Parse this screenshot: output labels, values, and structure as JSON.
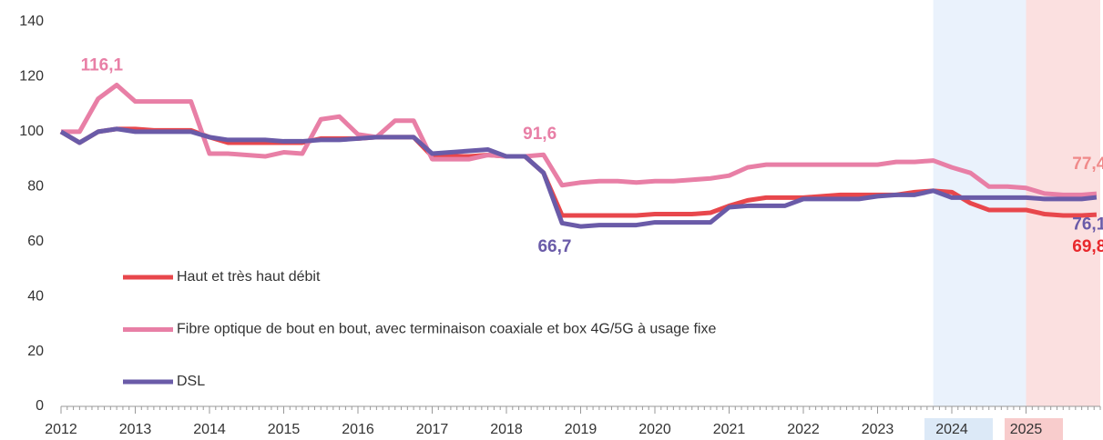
{
  "chart_data": {
    "type": "line",
    "x": [
      2012,
      2012.25,
      2012.5,
      2012.75,
      2013,
      2013.25,
      2013.5,
      2013.75,
      2014,
      2014.25,
      2014.5,
      2014.75,
      2015,
      2015.25,
      2015.5,
      2015.75,
      2016,
      2016.25,
      2016.5,
      2016.75,
      2017,
      2017.25,
      2017.5,
      2017.75,
      2018,
      2018.25,
      2018.5,
      2018.75,
      2019,
      2019.25,
      2019.5,
      2019.75,
      2020,
      2020.25,
      2020.5,
      2020.75,
      2021,
      2021.25,
      2021.5,
      2021.75,
      2022,
      2022.25,
      2022.5,
      2022.75,
      2023,
      2023.25,
      2023.5,
      2023.75,
      2024,
      2024.25,
      2024.5,
      2024.75,
      2025,
      2025.25,
      2025.5,
      2025.75,
      2025.95
    ],
    "series": [
      {
        "name": "Haut et très haut débit",
        "color": "#e8474c",
        "values": [
          100,
          96,
          100,
          101,
          101,
          100.5,
          100.5,
          100.5,
          98,
          96,
          96,
          96,
          96,
          96,
          97.5,
          97.5,
          97.5,
          98,
          98,
          98,
          91,
          91,
          91,
          91.5,
          91,
          91,
          85,
          69.5,
          69.5,
          69.5,
          69.5,
          69.5,
          70,
          70,
          70,
          70.5,
          73,
          75,
          76,
          76,
          76,
          76.5,
          77,
          77,
          77,
          77,
          78,
          78.5,
          78,
          74,
          71.5,
          71.5,
          71.5,
          70,
          69.5,
          69.5,
          69.8
        ]
      },
      {
        "name": "Fibre optique de bout en bout, avec terminaison coaxiale et box 4G/5G à usage fixe",
        "color": "#e87fa6",
        "values": [
          100,
          100,
          112,
          117,
          111,
          111,
          111,
          111,
          92,
          92,
          91.5,
          91,
          92.5,
          92,
          104.5,
          105.5,
          99,
          98,
          104,
          104,
          90,
          90,
          90,
          91.5,
          91,
          91,
          91.6,
          80.5,
          81.5,
          82,
          82,
          81.5,
          82,
          82,
          82.5,
          83,
          84,
          87,
          88,
          88,
          88,
          88,
          88,
          88,
          88,
          89,
          89,
          89.5,
          87,
          85,
          80,
          80,
          79.5,
          77.5,
          77,
          77,
          77.4
        ]
      },
      {
        "name": "DSL",
        "color": "#6a5ba8",
        "values": [
          100,
          96,
          100,
          101,
          100,
          100,
          100,
          100,
          98,
          97,
          97,
          97,
          96.5,
          96.5,
          97,
          97,
          97.5,
          98,
          98,
          98,
          92,
          92.5,
          93,
          93.5,
          91,
          91,
          85,
          66.7,
          65.5,
          66,
          66,
          66,
          67,
          67,
          67,
          67,
          72.5,
          73,
          73,
          73,
          75.5,
          75.5,
          75.5,
          75.5,
          76.5,
          77,
          77,
          78.5,
          76,
          76,
          76,
          76,
          76,
          75.5,
          75.5,
          75.5,
          76.1
        ]
      }
    ],
    "annotations": [
      {
        "label": "116,1",
        "x": 2012.55,
        "y": 124,
        "color": "#e87fa6"
      },
      {
        "label": "91,6",
        "x": 2018.45,
        "y": 99,
        "color": "#e87fa6"
      },
      {
        "label": "66,7",
        "x": 2018.65,
        "y": 58,
        "color": "#6a5ba8"
      },
      {
        "label": "77,4",
        "x": 2025.85,
        "y": 88,
        "color": "#f08a8a"
      },
      {
        "label": "76,1",
        "x": 2025.85,
        "y": 66,
        "color": "#6a5ba8"
      },
      {
        "label": "69,8",
        "x": 2025.85,
        "y": 58,
        "color": "#e8282c"
      }
    ],
    "highlights": [
      {
        "from": 2023.75,
        "to": 2025,
        "color": "#eaf2fc"
      },
      {
        "from": 2025,
        "to": 2026,
        "color": "#fbe0e0"
      }
    ],
    "xlim": [
      2012,
      2026
    ],
    "xticks": [
      2012,
      2013,
      2014,
      2015,
      2016,
      2017,
      2018,
      2019,
      2020,
      2021,
      2022,
      2023,
      2024,
      2025
    ],
    "ylim": [
      0,
      140
    ],
    "yticks": [
      0,
      20,
      40,
      60,
      80,
      100,
      120,
      140
    ],
    "grid": false
  }
}
